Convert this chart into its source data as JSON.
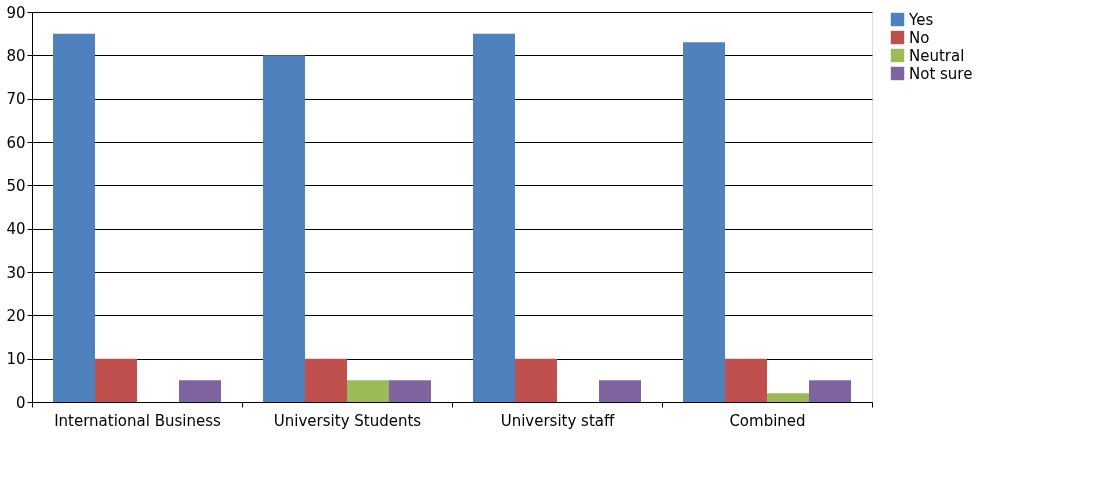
{
  "chart_data": {
    "type": "bar",
    "categories": [
      "International Business",
      "University Students",
      "University staff",
      "Combined"
    ],
    "series": [
      {
        "name": "Yes",
        "color": "#4f81bd",
        "values": [
          85,
          80,
          85,
          83
        ]
      },
      {
        "name": "No",
        "color": "#c0504d",
        "values": [
          10,
          10,
          10,
          10
        ]
      },
      {
        "name": "Neutral",
        "color": "#9bbb59",
        "values": [
          0,
          5,
          0,
          2
        ]
      },
      {
        "name": "Not sure",
        "color": "#8064a2",
        "values": [
          5,
          5,
          5,
          5
        ]
      }
    ],
    "ylim": [
      0,
      90
    ],
    "yticks": [
      0,
      10,
      20,
      30,
      40,
      50,
      60,
      70,
      80,
      90
    ],
    "grid": "y",
    "legend": "right"
  }
}
